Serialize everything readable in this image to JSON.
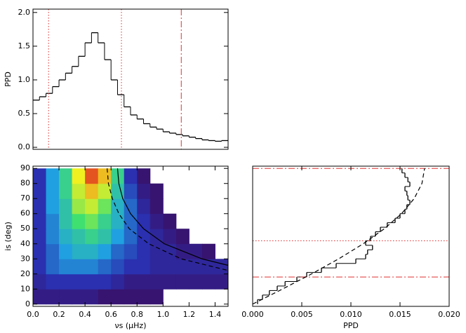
{
  "chart_data": [
    {
      "type": "histogram",
      "orientation": "vertical",
      "y_label": "PPD",
      "color": "#000000",
      "bins": [
        0,
        0.05,
        0.1,
        0.15,
        0.2,
        0.25,
        0.3,
        0.35,
        0.4,
        0.45,
        0.5,
        0.55,
        0.6,
        0.65,
        0.7,
        0.75,
        0.8,
        0.85,
        0.9,
        0.95,
        1.0,
        1.05,
        1.1,
        1.15,
        1.2,
        1.25,
        1.3,
        1.35,
        1.4,
        1.45,
        1.5
      ],
      "values": [
        0.7,
        0.75,
        0.8,
        0.9,
        1.0,
        1.1,
        1.2,
        1.35,
        1.55,
        1.7,
        1.55,
        1.3,
        1.0,
        0.78,
        0.6,
        0.48,
        0.42,
        0.35,
        0.3,
        0.27,
        0.23,
        0.21,
        0.19,
        0.17,
        0.15,
        0.13,
        0.11,
        0.1,
        0.09,
        0.1
      ],
      "xlim": [
        0,
        1.5
      ],
      "ylim": [
        -0.03,
        2.05
      ],
      "yticks": [
        {
          "value": 0,
          "label": "0.0"
        },
        0.5,
        {
          "value": 1,
          "label": "1.0"
        },
        1.5,
        {
          "value": 2,
          "label": "2.0"
        }
      ],
      "vlines": [
        {
          "x": 0.12,
          "style": "dotted",
          "color": "#e03030"
        },
        {
          "x": 0.68,
          "style": "dotted",
          "color": "#e03030"
        },
        {
          "x": 1.14,
          "style": "dashdot",
          "color": "#e03030"
        }
      ]
    },
    {
      "type": "heatmap",
      "x_label": "νs (μHz)",
      "y_label": "is (deg)",
      "x_bins": [
        0,
        0.1,
        0.2,
        0.3,
        0.4,
        0.5,
        0.6,
        0.7,
        0.8,
        0.9,
        1.0,
        1.1,
        1.2,
        1.3,
        1.4,
        1.5
      ],
      "y_bins": [
        0,
        10,
        20,
        30,
        40,
        50,
        60,
        70,
        80,
        90
      ],
      "values": [
        [
          0.1,
          0.1,
          0.1,
          0.1,
          0.1,
          0.05,
          0.05,
          0.05,
          0.05,
          0.05,
          0,
          0,
          0,
          0,
          0
        ],
        [
          0.15,
          0.2,
          0.2,
          0.2,
          0.2,
          0.2,
          0.15,
          0.1,
          0.1,
          0.1,
          0.1,
          0.1,
          0.1,
          0.1,
          0.1
        ],
        [
          0.2,
          0.3,
          0.35,
          0.35,
          0.35,
          0.3,
          0.25,
          0.2,
          0.2,
          0.15,
          0.15,
          0.15,
          0.15,
          0.15,
          0.15
        ],
        [
          0.2,
          0.3,
          0.4,
          0.45,
          0.45,
          0.4,
          0.3,
          0.25,
          0.2,
          0.15,
          0.15,
          0.1,
          0.1,
          0.05,
          0
        ],
        [
          0.2,
          0.35,
          0.45,
          0.5,
          0.55,
          0.5,
          0.4,
          0.3,
          0.2,
          0.15,
          0.1,
          0.05,
          0,
          0,
          0
        ],
        [
          0.2,
          0.35,
          0.5,
          0.6,
          0.65,
          0.55,
          0.45,
          0.3,
          0.2,
          0.1,
          0.05,
          0,
          0,
          0,
          0
        ],
        [
          0.2,
          0.4,
          0.5,
          0.7,
          0.75,
          0.65,
          0.45,
          0.3,
          0.15,
          0.05,
          0,
          0,
          0,
          0,
          0
        ],
        [
          0.2,
          0.4,
          0.55,
          0.75,
          0.85,
          0.75,
          0.5,
          0.25,
          0.1,
          0.05,
          0,
          0,
          0,
          0,
          0
        ],
        [
          0.2,
          0.4,
          0.55,
          0.8,
          0.95,
          0.85,
          0.55,
          0.2,
          0.05,
          0,
          0,
          0,
          0,
          0,
          0
        ]
      ],
      "colormap": [
        "#3b0a5a",
        "#2a30b0",
        "#20a0e0",
        "#40e070",
        "#f0f020",
        "#e02020"
      ],
      "curves": [
        {
          "style": "solid",
          "color": "#000000",
          "x": [
            0.65,
            0.66,
            0.69,
            0.75,
            0.85,
            1.01,
            1.3,
            1.5
          ],
          "y": [
            90,
            80,
            70,
            60,
            50,
            40,
            30,
            25.7
          ]
        },
        {
          "style": "dashed",
          "color": "#000000",
          "x": [
            0.57,
            0.58,
            0.61,
            0.66,
            0.74,
            0.89,
            1.14,
            1.5
          ],
          "y": [
            90,
            80,
            70,
            60,
            50,
            40,
            30,
            22.3
          ]
        }
      ],
      "xlim": [
        0,
        1.5
      ],
      "ylim": [
        -1.5,
        91.5
      ],
      "xticks": [
        {
          "value": 0,
          "label": "0.0"
        },
        0.2,
        0.4,
        0.6,
        0.8,
        {
          "value": 1,
          "label": "1.0"
        },
        1.2,
        1.4
      ],
      "yticks": [
        0,
        10,
        20,
        30,
        40,
        50,
        60,
        70,
        80,
        90
      ]
    },
    {
      "type": "histogram",
      "orientation": "horizontal",
      "x_label": "PPD",
      "color": "#000000",
      "bins": [
        0,
        3,
        6,
        9,
        12,
        15,
        18,
        21,
        24,
        27,
        30,
        33,
        36,
        39,
        42,
        45,
        48,
        51,
        54,
        57,
        60,
        63,
        66,
        69,
        72,
        75,
        78,
        81,
        84,
        87,
        90
      ],
      "values": [
        0.0005,
        0.001,
        0.0017,
        0.0025,
        0.0033,
        0.0045,
        0.0055,
        0.007,
        0.0085,
        0.0105,
        0.0115,
        0.0117,
        0.0122,
        0.0115,
        0.012,
        0.0125,
        0.013,
        0.0137,
        0.0145,
        0.015,
        0.0155,
        0.0157,
        0.016,
        0.0158,
        0.0157,
        0.0155,
        0.016,
        0.0158,
        0.0155,
        0.0152
      ],
      "xlim": [
        0,
        0.02
      ],
      "ylim": [
        -1.5,
        91.5
      ],
      "xticks": [
        {
          "value": 0,
          "label": "0.000"
        },
        {
          "value": 0.005,
          "label": "0.005"
        },
        {
          "value": 0.01,
          "label": "0.010"
        },
        {
          "value": 0.015,
          "label": "0.015"
        },
        {
          "value": 0.02,
          "label": "0.020"
        }
      ],
      "hlines": [
        {
          "y": 90,
          "style": "dashdot",
          "color": "#e03030"
        },
        {
          "y": 42,
          "style": "dotted",
          "color": "#e03030"
        },
        {
          "y": 18,
          "style": "dashdot",
          "color": "#e03030"
        }
      ],
      "curves": [
        {
          "style": "dashed",
          "color": "#000000",
          "x": [
            0,
            0.00304,
            0.00599,
            0.00875,
            0.01125,
            0.01341,
            0.01516,
            0.01644,
            0.01723,
            0.0175
          ],
          "y": [
            0,
            10,
            20,
            30,
            40,
            50,
            60,
            70,
            80,
            90
          ]
        }
      ]
    }
  ]
}
